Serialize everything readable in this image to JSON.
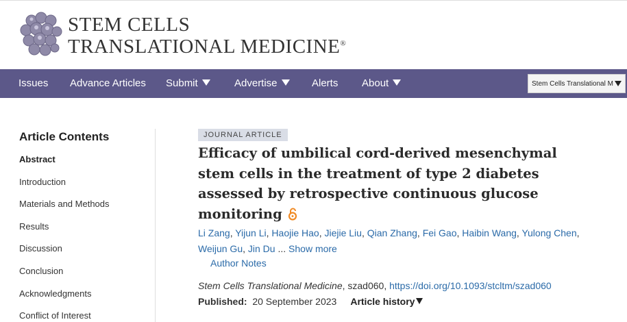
{
  "header": {
    "logo_line_1": "STEM CELLS",
    "logo_line_2": "TRANSLATIONAL MEDICINE",
    "logo_mark": "®"
  },
  "nav": {
    "items": [
      "Issues",
      "Advance Articles",
      "Submit",
      "Advertise",
      "Alerts",
      "About"
    ],
    "dropdowns": [
      false,
      false,
      true,
      true,
      false,
      true
    ],
    "journal_select": "Stem Cells Translational M"
  },
  "sidebar": {
    "title": "Article Contents",
    "items": [
      "Abstract",
      "Introduction",
      "Materials and Methods",
      "Results",
      "Discussion",
      "Conclusion",
      "Acknowledgments",
      "Conflict of Interest"
    ]
  },
  "article": {
    "badge": "JOURNAL ARTICLE",
    "title": "Efficacy of umbilical cord-derived mesenchymal stem cells in the treatment of type 2 diabetes assessed by retrospective continuous glucose monitoring",
    "authors": [
      "Li Zang",
      "Yijun Li",
      "Haojie Hao",
      "Jiejie Liu",
      "Qian Zhang",
      "Fei Gao",
      "Haibin Wang",
      "Yulong Chen",
      "Weijun Gu",
      "Jin Du"
    ],
    "author_separator": ",",
    "ellipsis": "...",
    "show_more": "Show more",
    "author_notes": "Author Notes",
    "citation": {
      "journal": "Stem Cells Translational Medicine",
      "id_text": ", szad060, ",
      "doi": "https://doi.org/10.1093/stcltm/szad060"
    },
    "published_label": "Published:",
    "published_date": "20 September 2023",
    "article_history": "Article history"
  }
}
